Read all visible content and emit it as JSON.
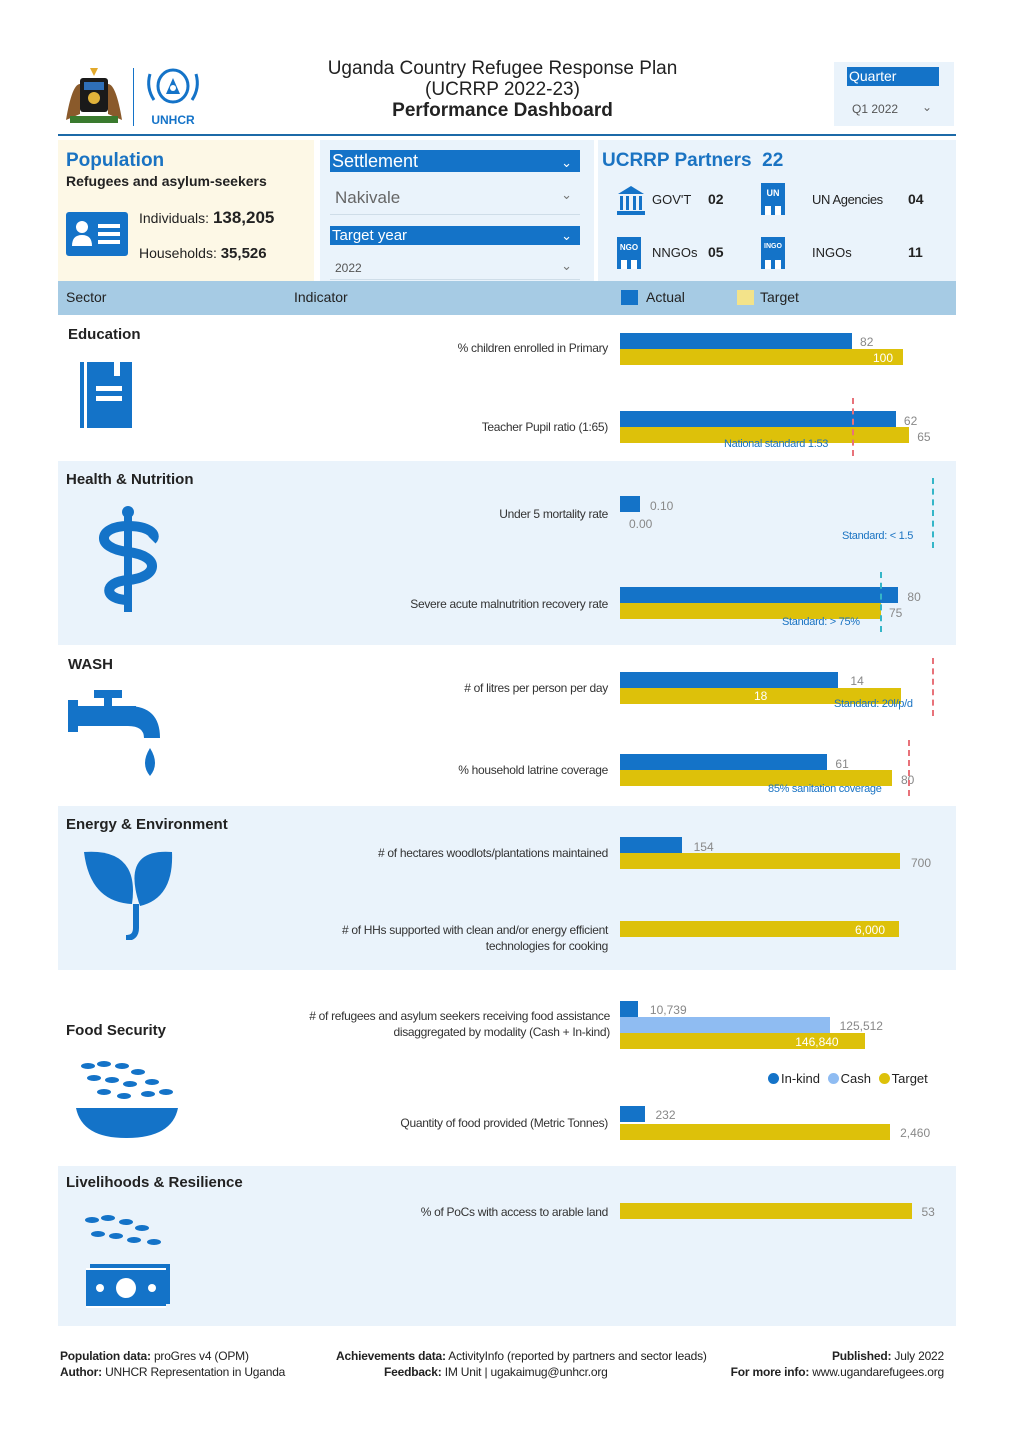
{
  "header": {
    "title_line1": "Uganda Country Refugee Response Plan",
    "title_line2": "(UCRRP 2022-23)",
    "title_line3": "Performance Dashboard",
    "logo_text": "UNHCR",
    "quarter_label": "Quarter",
    "quarter_value": "Q1 2022"
  },
  "population": {
    "title": "Population",
    "subtitle": "Refugees and asylum-seekers",
    "individuals_label": "Individuals:",
    "individuals_value": "138,205",
    "households_label": "Households:",
    "households_value": "35,526"
  },
  "filters": {
    "settlement_label": "Settlement",
    "settlement_value": "Nakivale",
    "target_year_label": "Target year",
    "target_year_value": "2022"
  },
  "partners": {
    "title": "UCRRP Partners",
    "total": "22",
    "govt_label": "GOV'T",
    "govt_value": "02",
    "un_label": "UN Agencies",
    "un_value": "04",
    "nngo_label": "NNGOs",
    "nngo_value": "05",
    "ingo_label": "INGOs",
    "ingo_value": "11",
    "un_icon_text": "UN",
    "ngo_icon_text": "NGO",
    "ingo_icon_text": "INGO"
  },
  "table_header": {
    "sector": "Sector",
    "indicator": "Indicator",
    "actual": "Actual",
    "target": "Target"
  },
  "colors": {
    "actual": "#1473c8",
    "target": "#ddc10a",
    "cash": "#8fbcf2",
    "section_bg": "#eaf3fb"
  },
  "chart_data": {
    "type": "bar",
    "sectors": [
      {
        "name": "Education",
        "icon": "book-icon",
        "indicators": [
          {
            "label": "% children enrolled in Primary",
            "actual": 82,
            "target": 100,
            "actual_label": "82",
            "target_label": "100"
          },
          {
            "label": "Teacher Pupil ratio (1:65)",
            "actual": 62,
            "target": 65,
            "actual_label": "62",
            "target_label": "65",
            "standard_label": "National standard 1:53"
          }
        ]
      },
      {
        "name": "Health & Nutrition",
        "icon": "health-icon",
        "indicators": [
          {
            "label": "Under 5 mortality rate",
            "actual": 0.1,
            "target": 0.0,
            "actual_label": "0.10",
            "target_label": "0.00",
            "standard_label": "Standard: < 1.5"
          },
          {
            "label": "Severe acute malnutrition recovery rate",
            "actual": 80,
            "target": 75,
            "actual_label": "80",
            "target_label": "75",
            "standard_label": "Standard: > 75%"
          }
        ]
      },
      {
        "name": "WASH",
        "icon": "tap-icon",
        "indicators": [
          {
            "label": "# of litres per person per day",
            "actual": 14,
            "target": 18,
            "actual_label": "14",
            "target_label": "18",
            "standard_label": "Standard: 20l/p/d"
          },
          {
            "label": "% household latrine coverage",
            "actual": 61,
            "target": 80,
            "actual_label": "61",
            "target_label": "80",
            "standard_label": "85% sanitation coverage"
          }
        ]
      },
      {
        "name": "Energy & Environment",
        "icon": "plant-icon",
        "indicators": [
          {
            "label": "# of hectares woodlots/plantations maintained",
            "actual": 154,
            "target": 700,
            "actual_label": "154",
            "target_label": "700"
          },
          {
            "label_line1": "# of HHs supported with clean and/or energy efficient",
            "label_line2": "technologies for cooking",
            "actual": 0,
            "target": 6000,
            "target_label": "6,000"
          }
        ]
      },
      {
        "name": "Food Security",
        "icon": "food-bowl-icon",
        "indicators": [
          {
            "label_line1": "# of refugees and asylum seekers receiving food assistance",
            "label_line2": "disaggregated by modality (Cash + In-kind)",
            "inkind": 10739,
            "cash": 125512,
            "target": 146840,
            "inkind_label": "10,739",
            "cash_label": "125,512",
            "target_label": "146,840"
          },
          {
            "label": "Quantity of food provided (Metric Tonnes)",
            "actual": 232,
            "target": 2460,
            "actual_label": "232",
            "target_label": "2,460"
          }
        ],
        "legend": [
          "In-kind",
          "Cash",
          "Target"
        ]
      },
      {
        "name": "Livelihoods & Resilience",
        "icon": "cash-icon",
        "indicators": [
          {
            "label": "% of PoCs with access to arable land",
            "actual": 0,
            "target": 53,
            "target_label": "53"
          }
        ]
      }
    ]
  },
  "footer": {
    "pop_data_label": "Population data:",
    "pop_data_value": "proGres v4 (OPM)",
    "author_label": "Author:",
    "author_value": "UNHCR Representation in Uganda",
    "ach_label": "Achievements data:",
    "ach_value": "ActivityInfo (reported by partners and sector leads)",
    "feedback_label": "Feedback:",
    "feedback_value": "IM Unit | ugakaimug@unhcr.org",
    "published_label": "Published:",
    "published_value": "July 2022",
    "more_label": "For more info:",
    "more_value": "www.ugandarefugees.org"
  }
}
